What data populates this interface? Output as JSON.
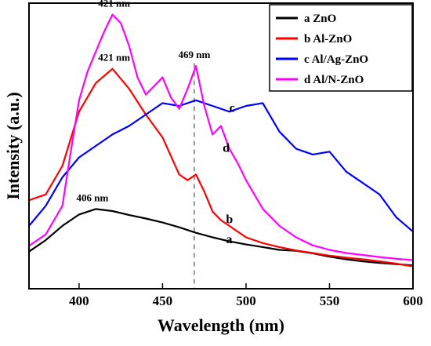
{
  "chart_data": {
    "type": "line",
    "xlabel": "Wavelength (nm)",
    "ylabel": "Intensity (a.u.)",
    "xlim": [
      370,
      600
    ],
    "ylim": [
      0,
      1
    ],
    "y_tick_labels": false,
    "x_ticks": [
      400,
      450,
      500,
      550,
      600
    ],
    "x_tick_labels": [
      "400",
      "450",
      "500",
      "550",
      "600"
    ],
    "grid": false,
    "legend_position": "top-right",
    "reference_line": {
      "x": 469,
      "style": "dashed",
      "color": "#a0a0a0"
    },
    "series": [
      {
        "name": "a ZnO",
        "curve_label": "a",
        "color": "#000000",
        "x": [
          370,
          380,
          390,
          400,
          410,
          420,
          430,
          440,
          450,
          460,
          470,
          480,
          490,
          500,
          510,
          520,
          530,
          540,
          550,
          560,
          570,
          580,
          590,
          600
        ],
        "y": [
          0.13,
          0.17,
          0.22,
          0.26,
          0.279,
          0.272,
          0.258,
          0.246,
          0.232,
          0.215,
          0.196,
          0.18,
          0.166,
          0.155,
          0.146,
          0.136,
          0.133,
          0.124,
          0.112,
          0.103,
          0.096,
          0.09,
          0.086,
          0.082
        ]
      },
      {
        "name": "b Al-ZnO",
        "curve_label": "b",
        "color": "#ff0000",
        "x": [
          370,
          380,
          390,
          400,
          410,
          420,
          430,
          440,
          450,
          460,
          465,
          470,
          475,
          480,
          485,
          490,
          495,
          500,
          510,
          520,
          530,
          540,
          550,
          560,
          570,
          580,
          590,
          600
        ],
        "y": [
          0.31,
          0.33,
          0.43,
          0.62,
          0.72,
          0.77,
          0.7,
          0.61,
          0.53,
          0.4,
          0.38,
          0.4,
          0.34,
          0.27,
          0.24,
          0.22,
          0.2,
          0.18,
          0.16,
          0.146,
          0.134,
          0.125,
          0.116,
          0.109,
          0.103,
          0.096,
          0.088,
          0.078
        ]
      },
      {
        "name": "c Al/Ag-ZnO",
        "curve_label": "c",
        "color": "#0000ff",
        "x": [
          370,
          380,
          390,
          400,
          410,
          420,
          430,
          440,
          450,
          460,
          470,
          480,
          490,
          500,
          510,
          520,
          530,
          540,
          550,
          560,
          570,
          580,
          590,
          600
        ],
        "y": [
          0.22,
          0.29,
          0.39,
          0.46,
          0.5,
          0.54,
          0.57,
          0.61,
          0.65,
          0.64,
          0.66,
          0.64,
          0.62,
          0.64,
          0.65,
          0.55,
          0.49,
          0.47,
          0.48,
          0.41,
          0.37,
          0.33,
          0.25,
          0.2
        ]
      },
      {
        "name": "d Al/N-ZnO",
        "curve_label": "d",
        "color": "#ff00ff",
        "x": [
          370,
          380,
          390,
          395,
          400,
          405,
          410,
          415,
          420,
          425,
          430,
          435,
          440,
          445,
          450,
          455,
          460,
          465,
          470,
          475,
          480,
          485,
          490,
          495,
          500,
          505,
          510,
          520,
          530,
          540,
          550,
          560,
          570,
          580,
          590,
          600
        ],
        "y": [
          0.15,
          0.19,
          0.29,
          0.48,
          0.66,
          0.76,
          0.83,
          0.9,
          0.96,
          0.93,
          0.85,
          0.74,
          0.68,
          0.71,
          0.74,
          0.67,
          0.63,
          0.7,
          0.78,
          0.64,
          0.54,
          0.57,
          0.49,
          0.44,
          0.38,
          0.33,
          0.28,
          0.22,
          0.18,
          0.152,
          0.136,
          0.125,
          0.118,
          0.111,
          0.105,
          0.1
        ]
      }
    ],
    "annotations": [
      {
        "text": "421 nm",
        "x": 421,
        "y": 0.96
      },
      {
        "text": "421 nm",
        "x": 421,
        "y": 0.77
      },
      {
        "text": "469 nm",
        "x": 469,
        "y": 0.78
      },
      {
        "text": "406 nm",
        "x": 408,
        "y": 0.279
      }
    ],
    "curve_label_positions": [
      {
        "text": "a",
        "x": 488,
        "y": 0.16
      },
      {
        "text": "b",
        "x": 488,
        "y": 0.23
      },
      {
        "text": "c",
        "x": 490,
        "y": 0.62
      },
      {
        "text": "d",
        "x": 486,
        "y": 0.48
      }
    ]
  }
}
